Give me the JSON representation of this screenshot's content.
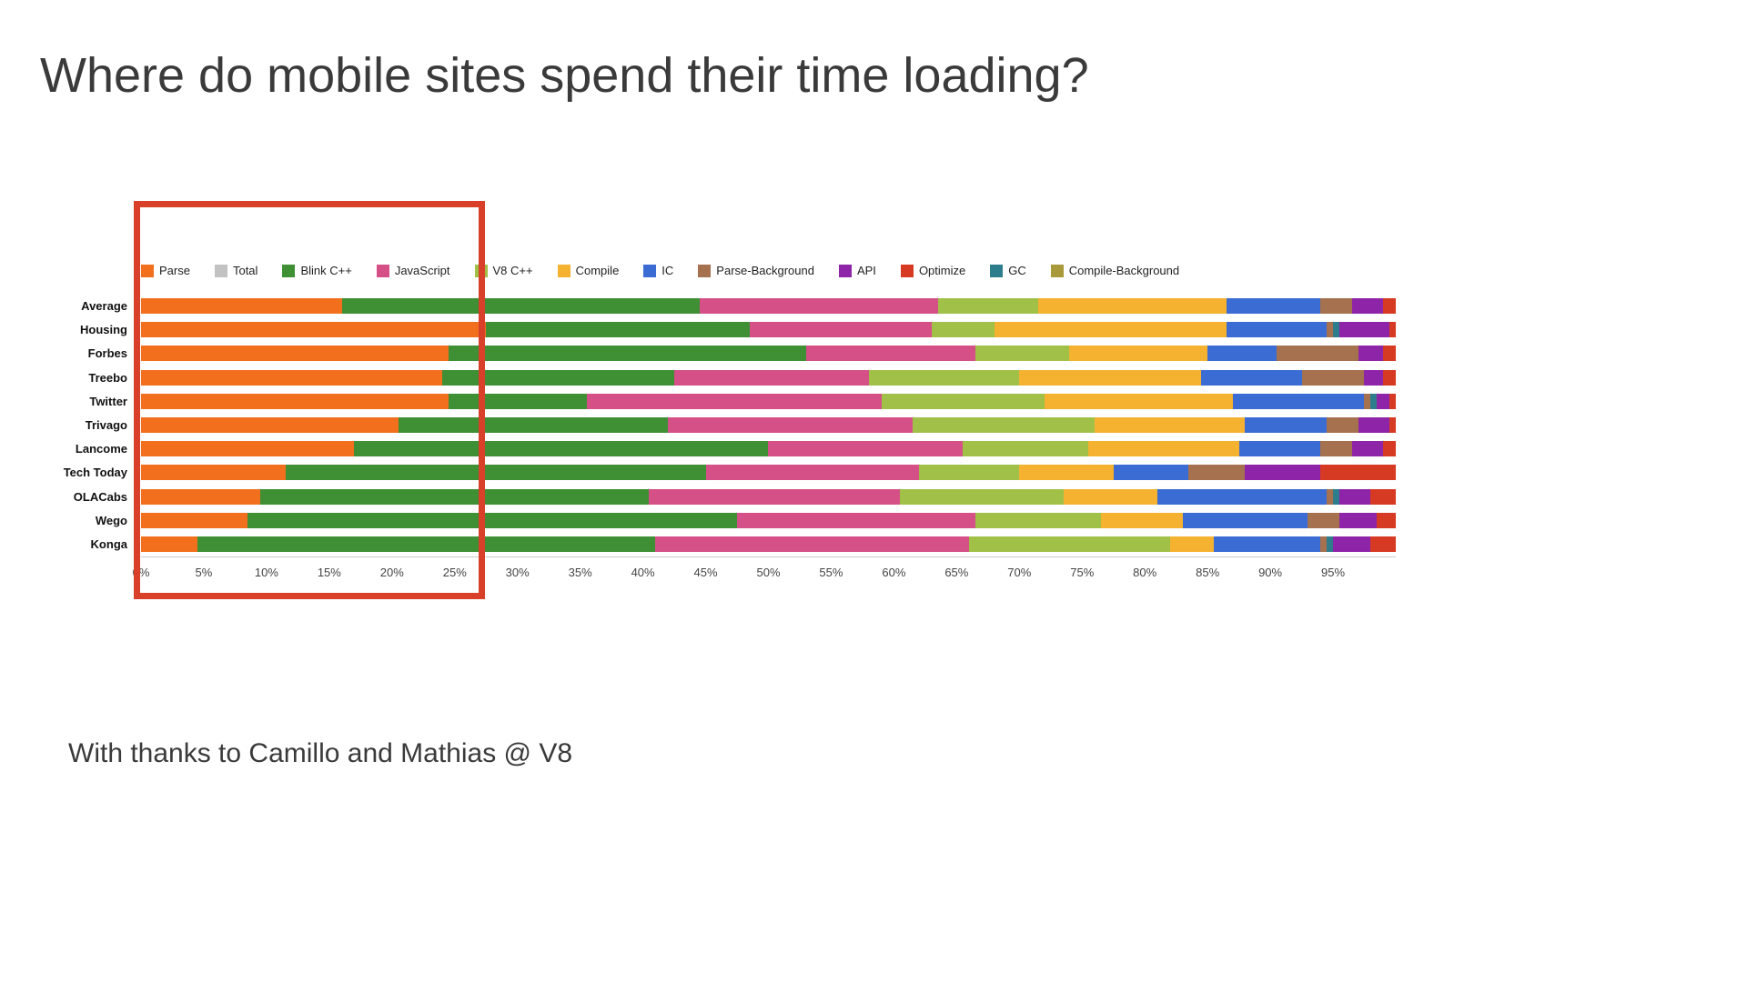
{
  "page": {
    "title": "Where do mobile sites spend their time loading?",
    "credit": "With thanks to Camillo and Mathias @ V8"
  },
  "annotation": {
    "highlight_box_color": "#d8402a",
    "highlight_range": "0% to ~27% of load time"
  },
  "chart_data": {
    "type": "bar",
    "stacked": true,
    "orientation": "horizontal",
    "unit": "%",
    "xlim": [
      0,
      100
    ],
    "grid": false,
    "legend_position": "top",
    "categories": [
      "Average",
      "Housing",
      "Forbes",
      "Treebo",
      "Twitter",
      "Trivago",
      "Lancome",
      "Tech Today",
      "OLACabs",
      "Wego",
      "Konga"
    ],
    "legend": [
      {
        "name": "Parse",
        "color": "#f2701d"
      },
      {
        "name": "Total",
        "color": "#c2c2c2"
      },
      {
        "name": "Blink C++",
        "color": "#3f8f35"
      },
      {
        "name": "JavaScript",
        "color": "#d45087"
      },
      {
        "name": "V8 C++",
        "color": "#a0c048"
      },
      {
        "name": "Compile",
        "color": "#f5b231"
      },
      {
        "name": "IC",
        "color": "#3b6cd4"
      },
      {
        "name": "Parse-Background",
        "color": "#a5714f"
      },
      {
        "name": "API",
        "color": "#8e25a8"
      },
      {
        "name": "Optimize",
        "color": "#d63a23"
      },
      {
        "name": "GC",
        "color": "#2e7d8c"
      },
      {
        "name": "Compile-Background",
        "color": "#a89a3a"
      }
    ],
    "series": [
      {
        "name": "Parse",
        "values": [
          16,
          27.5,
          24.5,
          24,
          24.5,
          20.5,
          17,
          11.5,
          9.5,
          8.5,
          4.5
        ]
      },
      {
        "name": "Blink C++",
        "values": [
          28.5,
          21,
          28.5,
          18.5,
          11,
          21.5,
          33,
          33.5,
          31,
          39,
          36.5
        ]
      },
      {
        "name": "JavaScript",
        "values": [
          19,
          14.5,
          13.5,
          15.5,
          23.5,
          19.5,
          15.5,
          17,
          20,
          19,
          25
        ]
      },
      {
        "name": "V8 C++",
        "values": [
          8,
          5,
          7.5,
          12,
          13,
          14.5,
          10,
          8,
          13,
          10,
          16
        ]
      },
      {
        "name": "Compile",
        "values": [
          15,
          18.5,
          11,
          14.5,
          15,
          12,
          12,
          7.5,
          7.5,
          6.5,
          3.5
        ]
      },
      {
        "name": "IC",
        "values": [
          7.5,
          8,
          5.5,
          8,
          10.5,
          6.5,
          6.5,
          6,
          13.5,
          10,
          8.5
        ]
      },
      {
        "name": "Parse-Background",
        "values": [
          2.5,
          0.5,
          6.5,
          5,
          0.5,
          2.5,
          2.5,
          4.5,
          0.5,
          2.5,
          0.5
        ]
      },
      {
        "name": "GC",
        "values": [
          0,
          0.5,
          0,
          0,
          0.5,
          0,
          0,
          0,
          0.5,
          0,
          0.5
        ]
      },
      {
        "name": "API",
        "values": [
          2.5,
          4,
          2,
          1.5,
          1,
          2.5,
          2.5,
          6,
          2.5,
          3,
          3
        ]
      },
      {
        "name": "Optimize",
        "values": [
          1,
          0.5,
          1,
          1,
          0.5,
          0.5,
          1,
          6,
          2,
          1.5,
          2
        ]
      },
      {
        "name": "Total",
        "values": [
          0,
          0,
          0,
          0,
          0,
          0,
          0,
          0,
          0,
          0,
          0
        ]
      },
      {
        "name": "Compile-Background",
        "values": [
          0,
          0,
          0,
          0,
          0,
          0,
          0,
          0,
          0,
          0,
          0
        ]
      }
    ],
    "x_ticks": [
      "0%",
      "5%",
      "10%",
      "15%",
      "20%",
      "25%",
      "30%",
      "35%",
      "40%",
      "45%",
      "50%",
      "55%",
      "60%",
      "65%",
      "70%",
      "75%",
      "80%",
      "85%",
      "90%",
      "95%"
    ]
  }
}
